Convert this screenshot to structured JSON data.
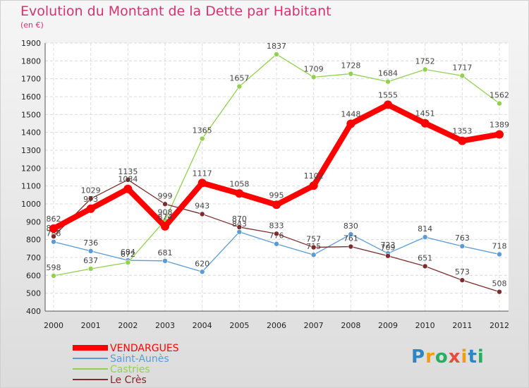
{
  "title": "Evolution du Montant de la Dette par Habitant",
  "unit_label": "(en €)",
  "logo": "Proxiti",
  "chart_data": {
    "type": "line",
    "x": [
      "2000",
      "2001",
      "2002",
      "2003",
      "2004",
      "2005",
      "2006",
      "2007",
      "2008",
      "2009",
      "2010",
      "2011",
      "2012"
    ],
    "ylim": [
      400,
      1900
    ],
    "yticks": [
      400,
      500,
      600,
      700,
      800,
      900,
      1000,
      1100,
      1200,
      1300,
      1400,
      1500,
      1600,
      1700,
      1800,
      1900
    ],
    "grid": true,
    "legend_position": "bottom-left",
    "series": [
      {
        "name": "VENDARGUES",
        "color": "#ff0000",
        "values": [
          862,
          973,
          1084,
          874,
          1117,
          1058,
          995,
          1102,
          1448,
          1555,
          1451,
          1353,
          1389
        ]
      },
      {
        "name": "Saint-Aunès",
        "color": "#5b9bd5",
        "values": [
          788,
          736,
          684,
          681,
          620,
          843,
          776,
          715,
          830,
          723,
          814,
          763,
          718
        ]
      },
      {
        "name": "Castries",
        "color": "#92d050",
        "values": [
          598,
          637,
          672,
          908,
          1365,
          1657,
          1837,
          1709,
          1728,
          1684,
          1752,
          1717,
          1562
        ]
      },
      {
        "name": "Le Crès",
        "color": "#7b2c2c",
        "values": [
          818,
          1029,
          1135,
          999,
          943,
          870,
          833,
          757,
          761,
          709,
          651,
          573,
          508
        ]
      }
    ]
  }
}
